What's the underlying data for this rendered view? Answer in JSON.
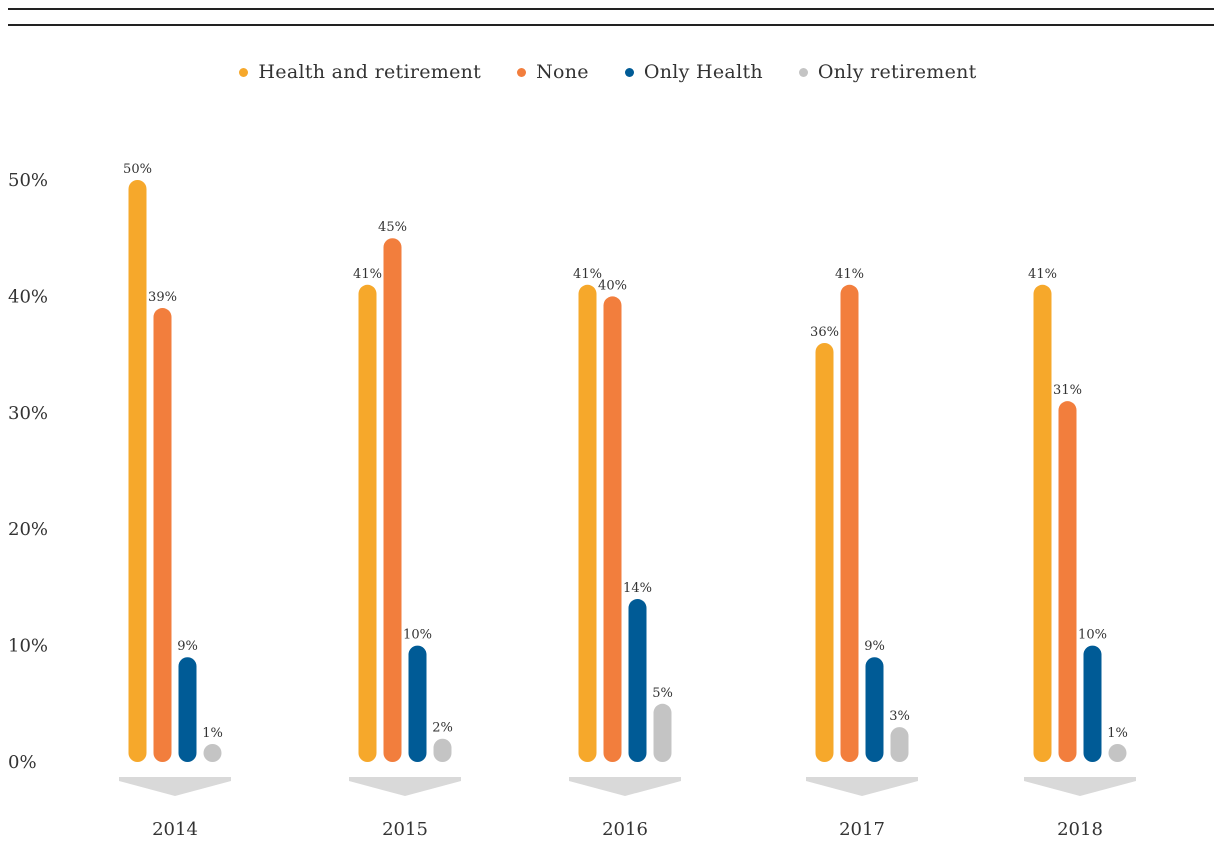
{
  "chart_data": {
    "type": "bar",
    "categories": [
      "2014",
      "2015",
      "2016",
      "2017",
      "2018"
    ],
    "series": [
      {
        "name": "Health and retirement",
        "color": "#F6A82B",
        "values": [
          50,
          41,
          41,
          36,
          41
        ]
      },
      {
        "name": "None",
        "color": "#F27E3D",
        "values": [
          39,
          45,
          40,
          41,
          31
        ]
      },
      {
        "name": "Only Health",
        "color": "#005B96",
        "values": [
          9,
          10,
          14,
          9,
          10
        ]
      },
      {
        "name": "Only retirement",
        "color": "#C4C4C4",
        "values": [
          1,
          2,
          5,
          3,
          1
        ]
      }
    ],
    "y_ticks": [
      "0%",
      "10%",
      "20%",
      "30%",
      "40%",
      "50%"
    ],
    "ylim": [
      0,
      50
    ],
    "value_suffix": "%",
    "title": "",
    "xlabel": "",
    "ylabel": "",
    "legend_position": "top-center",
    "grid": false
  }
}
